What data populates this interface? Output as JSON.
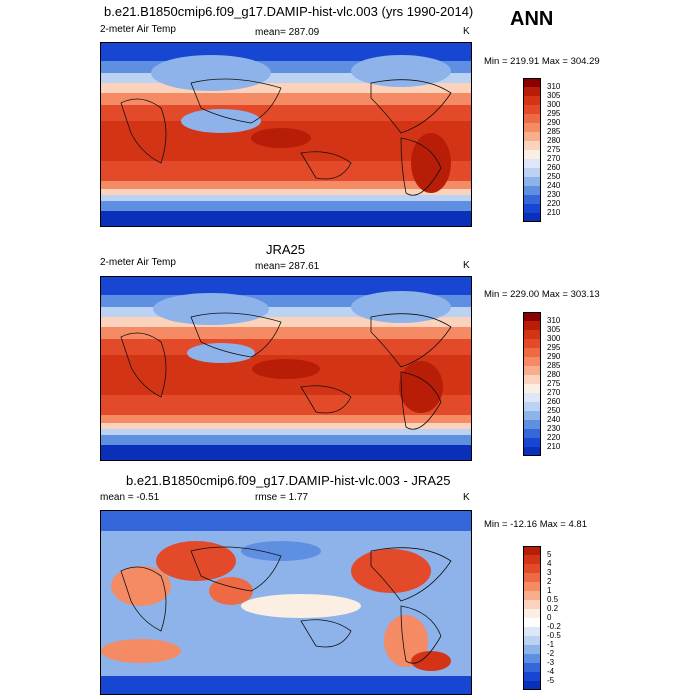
{
  "header": {
    "ann_label": "ANN"
  },
  "panels": [
    {
      "title": "b.e21.B1850cmip6.f09_g17.DAMIP-hist-vlc.003 (yrs 1990-2014)",
      "left_label": "2-meter Air Temp",
      "center_label": "mean= 287.09",
      "right_label": "K",
      "minmax": "Min = 219.91 Max = 304.29",
      "colorbar": {
        "labels": [
          "310",
          "305",
          "300",
          "295",
          "290",
          "285",
          "280",
          "275",
          "270",
          "260",
          "250",
          "240",
          "230",
          "220",
          "210"
        ],
        "colors": [
          "#8b0000",
          "#b81d07",
          "#d33415",
          "#e34a2a",
          "#ee6a44",
          "#f58b64",
          "#f8ad8d",
          "#fbd3bd",
          "#fbeee2",
          "#dde7f7",
          "#bcd2f2",
          "#8db3ea",
          "#5e8fe1",
          "#3567db",
          "#1747d2",
          "#0a2fb8"
        ]
      }
    },
    {
      "title": "JRA25",
      "left_label": "2-meter Air Temp",
      "center_label": "mean= 287.61",
      "right_label": "K",
      "minmax": "Min = 229.00 Max = 303.13",
      "colorbar": {
        "labels": [
          "310",
          "305",
          "300",
          "295",
          "290",
          "285",
          "280",
          "275",
          "270",
          "260",
          "250",
          "240",
          "230",
          "220",
          "210"
        ],
        "colors": [
          "#8b0000",
          "#b81d07",
          "#d33415",
          "#e34a2a",
          "#ee6a44",
          "#f58b64",
          "#f8ad8d",
          "#fbd3bd",
          "#fbeee2",
          "#dde7f7",
          "#bcd2f2",
          "#8db3ea",
          "#5e8fe1",
          "#3567db",
          "#1747d2",
          "#0a2fb8"
        ]
      }
    },
    {
      "title": "b.e21.B1850cmip6.f09_g17.DAMIP-hist-vlc.003 - JRA25",
      "left_label": "mean =  -0.51",
      "center_label": "rmse =   1.77",
      "right_label": "K",
      "minmax": "Min = -12.16 Max =  4.81",
      "colorbar": {
        "labels": [
          "5",
          "4",
          "3",
          "2",
          "1",
          "0.5",
          "0.2",
          "0",
          "-0.2",
          "-0.5",
          "-1",
          "-2",
          "-3",
          "-4",
          "-5"
        ],
        "colors": [
          "#b81d07",
          "#d33415",
          "#e34a2a",
          "#ee6a44",
          "#f58b64",
          "#f8ad8d",
          "#fbd3bd",
          "#fbeee2",
          "#ffffff",
          "#dde7f7",
          "#bcd2f2",
          "#8db3ea",
          "#5e8fe1",
          "#3567db",
          "#1747d2",
          "#0a2fb8"
        ]
      }
    }
  ]
}
